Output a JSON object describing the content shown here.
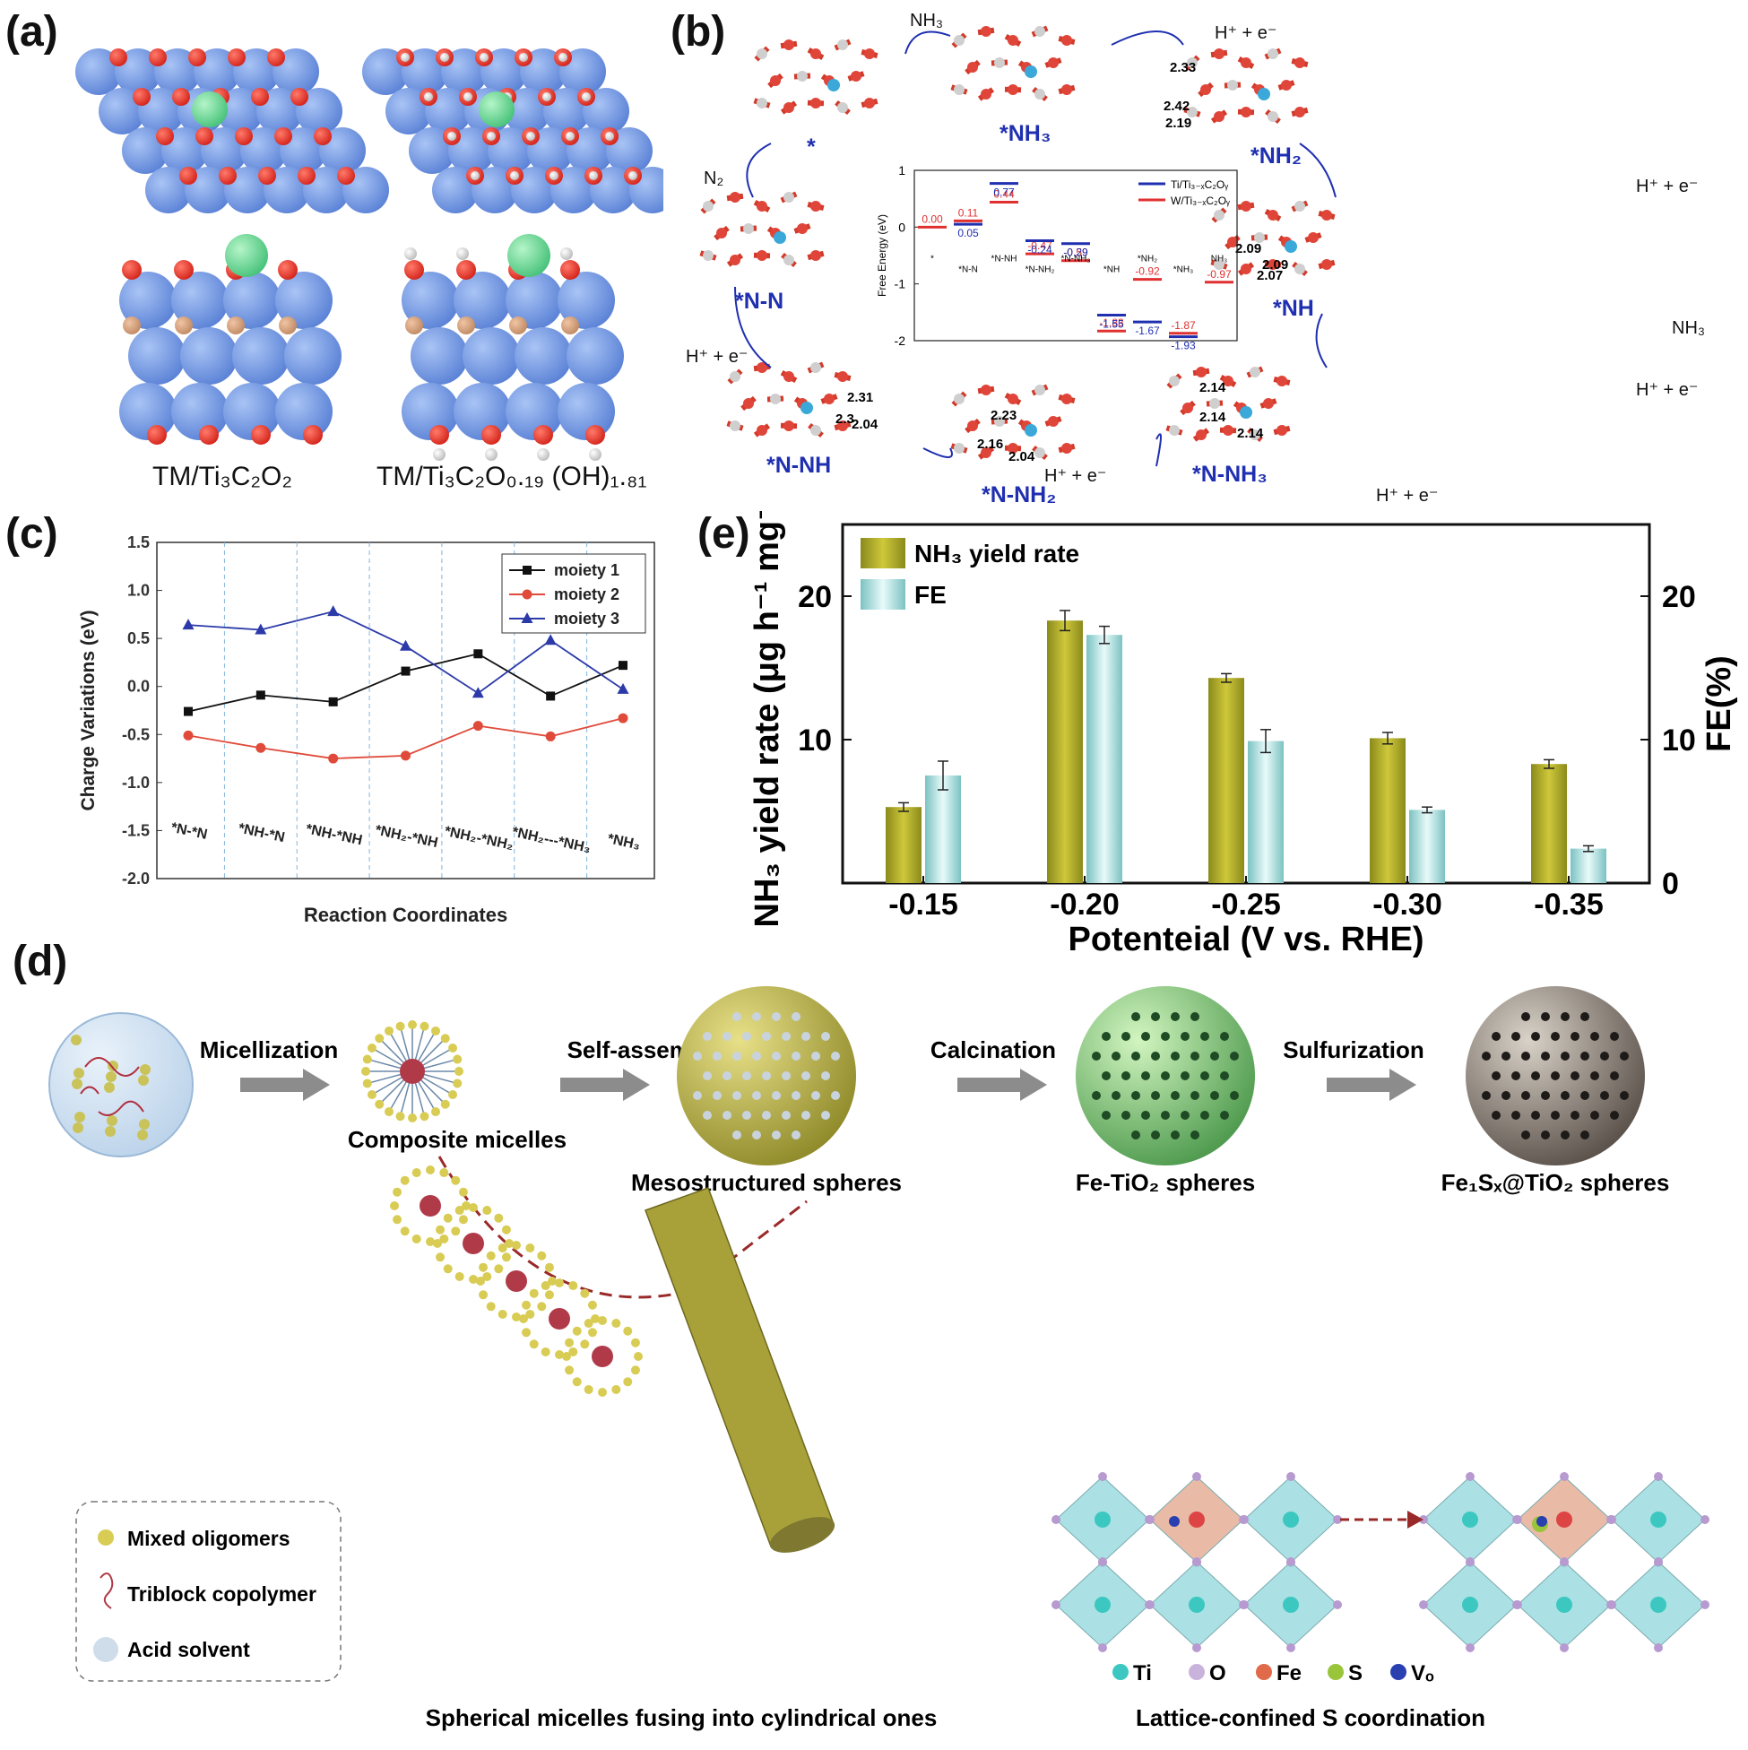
{
  "panels": {
    "a": "(a)",
    "b": "(b)",
    "c": "(c)",
    "d": "(d)",
    "e": "(e)"
  },
  "panel_a": {
    "label_1": "TM/Ti₃C₂O₂",
    "label_2": "TM/Ti₃C₂O₀.₁₉ (OH)₁.₈₁"
  },
  "panel_b": {
    "states": [
      "*",
      "*NH₃",
      "*NH₂",
      "*N-N",
      "*NH",
      "*N-NH",
      "*N-NH₂",
      "*N-NH₃"
    ],
    "reagents": [
      "NH₃",
      "N₂",
      "H⁺ + e⁻",
      "NH₃"
    ],
    "bond_lengths": [
      "2.33",
      "2.42",
      "2.19",
      "2.09",
      "2.09",
      "2.07",
      "2.31",
      "2.3",
      "2.04",
      "2.23",
      "2.16",
      "2.04",
      "2.14",
      "2.14",
      "2.14"
    ],
    "inset": {
      "ylabel": "Free Energy (eV)",
      "yticks": [
        "1",
        "0",
        "-1",
        "-2"
      ],
      "legend": [
        "Ti/Ti₃₋ₓC₂Oᵧ",
        "W/Ti₃₋ₓC₂Oᵧ"
      ],
      "steps": [
        "*",
        "*N-N",
        "*N-NH",
        "*N-NH₂",
        "*N-NH₃",
        "*NH",
        "*NH₂",
        "*NH₃",
        "NH₃"
      ],
      "colors": {
        "ti": "#1f2fb0",
        "w": "#e03030"
      }
    }
  },
  "chart_data": [
    {
      "type": "line",
      "panel": "c",
      "title": "",
      "xlabel": "Reaction Coordinates",
      "ylabel": "Charge Variations (eV)",
      "ylim": [
        -2.0,
        1.5
      ],
      "yticks": [
        "1.5",
        "1.0",
        "0.5",
        "0.0",
        "-0.5",
        "-1.0",
        "-1.5",
        "-2.0"
      ],
      "categories": [
        "*N-*N",
        "*NH-*N",
        "*NH-*NH",
        "*NH₂-*NH",
        "*NH₂-*NH₂",
        "*NH₂---*NH₃",
        "*NH₃"
      ],
      "grid": "vertical dashed",
      "legend_position": "top-right",
      "series": [
        {
          "name": "moiety 1",
          "color": "#111111",
          "marker": "square",
          "values": [
            -0.26,
            -0.09,
            -0.16,
            0.16,
            0.34,
            -0.1,
            0.22
          ]
        },
        {
          "name": "moiety 2",
          "color": "#e04a3a",
          "marker": "circle",
          "values": [
            -0.51,
            -0.64,
            -0.75,
            -0.72,
            -0.41,
            -0.52,
            -0.33
          ]
        },
        {
          "name": "moiety 3",
          "color": "#2b3aa8",
          "marker": "triangle",
          "values": [
            0.64,
            0.59,
            0.78,
            0.42,
            -0.07,
            0.48,
            -0.03
          ]
        }
      ]
    },
    {
      "type": "bar",
      "panel": "e",
      "title": "",
      "xlabel": "Potenteial (V vs. RHE)",
      "ylabel": "NH₃ yield rate (μg h⁻¹ mg⁻¹)",
      "y2label": "FE(%)",
      "categories": [
        "-0.15",
        "-0.20",
        "-0.25",
        "-0.30",
        "-0.35"
      ],
      "yticks": [
        "10",
        "20"
      ],
      "y2ticks": [
        "0",
        "10",
        "20"
      ],
      "ylim": [
        0,
        25
      ],
      "y2lim": [
        0,
        25
      ],
      "legend_position": "top-left",
      "series": [
        {
          "name": "NH₃ yield rate",
          "axis": "left",
          "color": "#b8b22e",
          "values": [
            5.3,
            18.3,
            14.3,
            10.1,
            8.3
          ],
          "errors": [
            0.3,
            0.7,
            0.3,
            0.4,
            0.3
          ]
        },
        {
          "name": "FE",
          "axis": "right",
          "color": "#9fd6d4",
          "values": [
            7.5,
            17.3,
            9.9,
            5.1,
            2.4
          ],
          "errors": [
            1.0,
            0.6,
            0.8,
            0.2,
            0.2
          ]
        }
      ]
    }
  ],
  "panel_d": {
    "steps": [
      "Micellization",
      "Self-assembly",
      "Calcination",
      "Sulfurization"
    ],
    "labels": [
      "Composite micelles",
      "Mesostructured spheres",
      "Fe-TiO₂ spheres",
      "Fe₁Sₓ@TiO₂ spheres"
    ],
    "bottom_left": "Spherical micelles fusing into cylindrical ones",
    "bottom_right": "Lattice-confined S coordination",
    "legend": [
      "Mixed oligomers",
      "Triblock copolymer",
      "Acid solvent"
    ],
    "atom_legend": [
      "Ti",
      "O",
      "Fe",
      "S",
      "Vₒ"
    ]
  }
}
